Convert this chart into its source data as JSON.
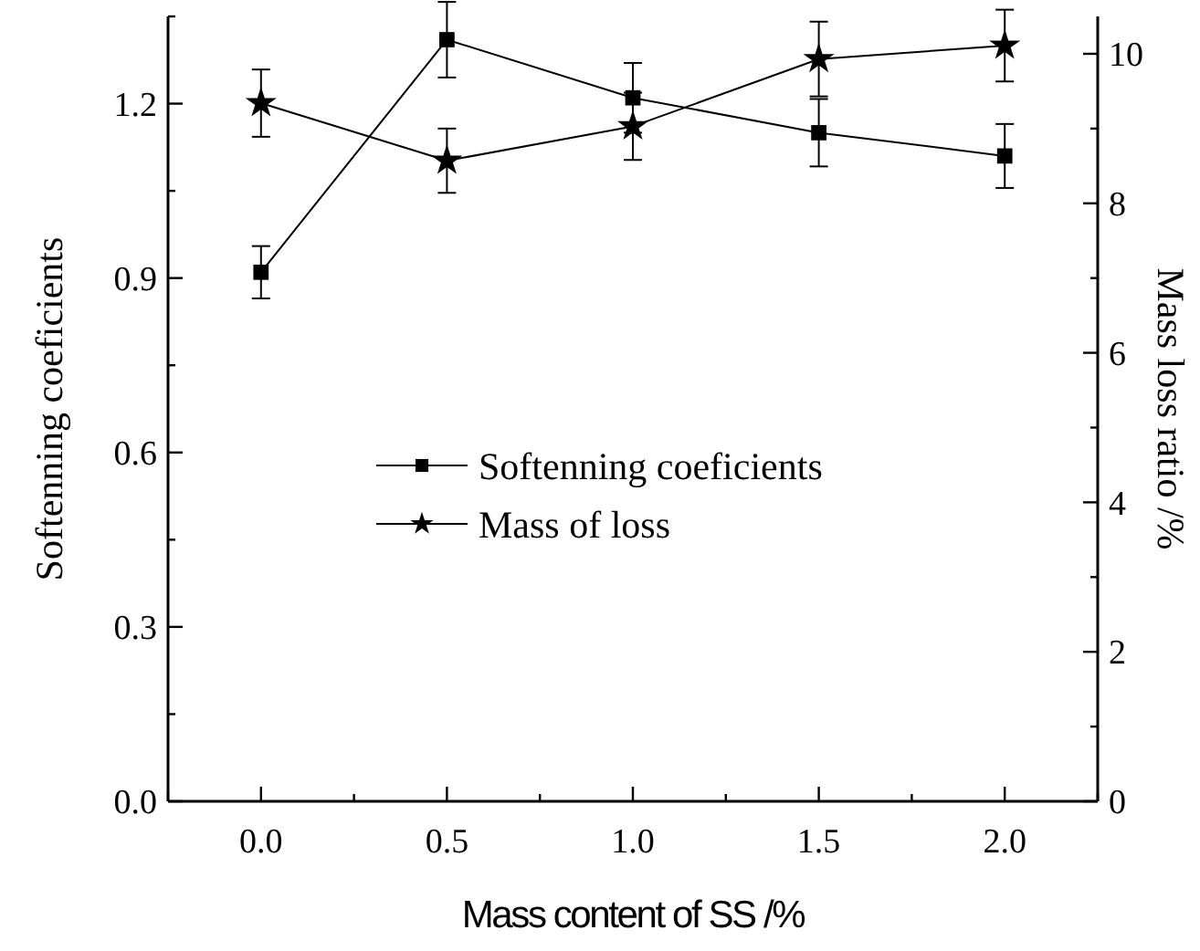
{
  "chart_data": {
    "type": "line",
    "xlabel": "Mass content of SS /%",
    "ylabel": "Softenning  coeficients",
    "y2label": "Mass loss ratio /%",
    "x": [
      0,
      0.5,
      1,
      1.5,
      2
    ],
    "series": [
      {
        "name": "Softenning  coeficients",
        "color": "#000000",
        "marker": "square",
        "values": [
          0.91,
          1.31,
          1.21,
          1.15,
          1.11
        ],
        "errors": [
          0.045,
          0.065,
          0.06,
          0.058,
          0.055
        ]
      },
      {
        "name": "Mass of loss",
        "color": "#000000",
        "marker": "star",
        "axis": "y2",
        "values": [
          9.34,
          8.57,
          9.03,
          9.93,
          10.11
        ],
        "errors": [
          0.45,
          0.43,
          0.45,
          0.5,
          0.48
        ]
      }
    ],
    "xlim": [
      -0.25,
      2.25
    ],
    "xticks": [
      {
        "value": -0.25,
        "label": null
      },
      {
        "value": 0,
        "label": "0.0"
      },
      {
        "value": 0.25,
        "label": null
      },
      {
        "value": 0.5,
        "label": "0.5"
      },
      {
        "value": 0.75,
        "label": null
      },
      {
        "value": 1,
        "label": "1.0"
      },
      {
        "value": 1.25,
        "label": null
      },
      {
        "value": 1.5,
        "label": "1.5"
      },
      {
        "value": 1.75,
        "label": null
      },
      {
        "value": 2,
        "label": "2.0"
      },
      {
        "value": 2.25,
        "label": null
      }
    ],
    "ylim": [
      0,
      1.35
    ],
    "yticks": [
      {
        "value": 0,
        "label": "0.0"
      },
      {
        "value": 0.15,
        "label": null
      },
      {
        "value": 0.3,
        "label": "0.3"
      },
      {
        "value": 0.45,
        "label": null
      },
      {
        "value": 0.6,
        "label": "0.6"
      },
      {
        "value": 0.75,
        "label": null
      },
      {
        "value": 0.9,
        "label": "0.9"
      },
      {
        "value": 1.05,
        "label": null
      },
      {
        "value": 1.2,
        "label": "1.2"
      },
      {
        "value": 1.35,
        "label": null
      }
    ],
    "y2lim": [
      0,
      10.5
    ],
    "y2ticks": [
      0,
      {
        "value": 1,
        "label": null
      },
      2,
      {
        "value": 3,
        "label": null
      },
      4,
      {
        "value": 5,
        "label": null
      },
      6,
      {
        "value": 7,
        "label": null
      },
      8,
      {
        "value": 9,
        "label": null
      },
      10
    ],
    "legend": "center",
    "grid": false,
    "line_style": "solid"
  }
}
